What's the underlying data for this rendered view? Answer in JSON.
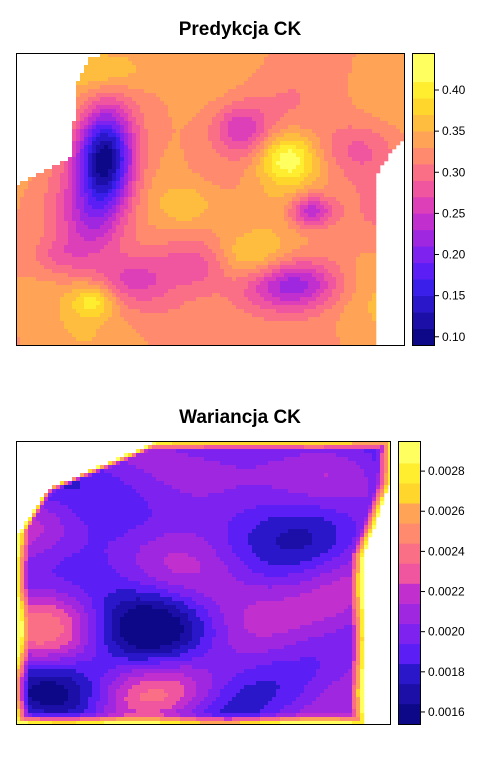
{
  "palette": [
    "#0d0887",
    "#1b0fa8",
    "#2a17c9",
    "#3a1fea",
    "#5b1ff5",
    "#7e22f0",
    "#a027e0",
    "#c12fcf",
    "#dd3fb8",
    "#f0569f",
    "#fb6f86",
    "#ff8a6d",
    "#ffa456",
    "#ffbd40",
    "#ffd62c",
    "#ffee30",
    "#ffff60"
  ],
  "chart_data": [
    {
      "type": "heatmap",
      "title": "Predykcja CK",
      "legend": {
        "position": "right",
        "range": [
          0.09,
          0.445
        ],
        "ticks": [
          0.1,
          0.15,
          0.2,
          0.25,
          0.3,
          0.35,
          0.4
        ],
        "tick_labels": [
          "0.10",
          "0.15",
          "0.20",
          "0.25",
          "0.30",
          "0.35",
          "0.40"
        ],
        "breaks": [
          0.09,
          0.11,
          0.13,
          0.15,
          0.17,
          0.19,
          0.21,
          0.23,
          0.25,
          0.27,
          0.29,
          0.31,
          0.33,
          0.35,
          0.37,
          0.39,
          0.41,
          0.445
        ]
      },
      "surface": {
        "base": 0.33,
        "features": [
          {
            "cx": 0.23,
            "cy": 0.36,
            "rx": 0.05,
            "ry": 0.12,
            "amp": -0.22
          },
          {
            "cx": 0.19,
            "cy": 0.58,
            "rx": 0.06,
            "ry": 0.1,
            "amp": -0.08
          },
          {
            "cx": 0.76,
            "cy": 0.54,
            "rx": 0.04,
            "ry": 0.04,
            "amp": -0.1
          },
          {
            "cx": 0.71,
            "cy": 0.79,
            "rx": 0.09,
            "ry": 0.06,
            "amp": -0.11
          },
          {
            "cx": 0.58,
            "cy": 0.26,
            "rx": 0.05,
            "ry": 0.06,
            "amp": -0.07
          },
          {
            "cx": 0.88,
            "cy": 0.33,
            "rx": 0.07,
            "ry": 0.07,
            "amp": -0.05
          },
          {
            "cx": 0.48,
            "cy": 0.72,
            "rx": 0.07,
            "ry": 0.06,
            "amp": -0.06
          },
          {
            "cx": 0.3,
            "cy": 0.78,
            "rx": 0.07,
            "ry": 0.06,
            "amp": -0.05
          },
          {
            "cx": 0.11,
            "cy": 0.7,
            "rx": 0.05,
            "ry": 0.05,
            "amp": -0.04
          },
          {
            "cx": 0.7,
            "cy": 0.36,
            "rx": 0.05,
            "ry": 0.06,
            "amp": 0.09
          },
          {
            "cx": 0.2,
            "cy": 0.85,
            "rx": 0.04,
            "ry": 0.04,
            "amp": 0.07
          },
          {
            "cx": 0.6,
            "cy": 0.71,
            "rx": 0.08,
            "ry": 0.06,
            "amp": 0.06
          },
          {
            "cx": 0.22,
            "cy": 0.06,
            "rx": 0.08,
            "ry": 0.05,
            "amp": 0.04
          },
          {
            "cx": 0.44,
            "cy": 0.52,
            "rx": 0.05,
            "ry": 0.05,
            "amp": 0.04
          }
        ],
        "noise_amp": 0.03,
        "seed": 7
      },
      "mask": {
        "top": [
          [
            0.0,
            0.45
          ],
          [
            0.14,
            0.36
          ],
          [
            0.16,
            0.09
          ],
          [
            0.19,
            0.02
          ],
          [
            0.23,
            0.0
          ],
          [
            1.0,
            0.0
          ]
        ],
        "right": [
          [
            0.0,
            1.0
          ],
          [
            0.29,
            1.0
          ],
          [
            0.35,
            0.96
          ],
          [
            0.42,
            0.93
          ],
          [
            0.6,
            0.93
          ],
          [
            0.8,
            0.93
          ],
          [
            1.0,
            0.93
          ]
        ],
        "left": [
          [
            0.0,
            0.14
          ],
          [
            0.11,
            0.14
          ],
          [
            0.17,
            0.11
          ],
          [
            0.25,
            0.05
          ],
          [
            0.33,
            0.0
          ],
          [
            1.0,
            0.0
          ]
        ]
      }
    },
    {
      "type": "heatmap",
      "title": "Wariancja CK",
      "legend": {
        "position": "right",
        "range": [
          0.00154,
          0.00295
        ],
        "ticks": [
          0.0016,
          0.0018,
          0.002,
          0.0022,
          0.0024,
          0.0026,
          0.0028
        ],
        "tick_labels": [
          "0.0016",
          "0.0018",
          "0.0020",
          "0.0022",
          "0.0024",
          "0.0026",
          "0.0028"
        ],
        "breaks": [
          0.00154,
          0.00164,
          0.00174,
          0.00184,
          0.00194,
          0.00204,
          0.00214,
          0.00224,
          0.00234,
          0.00244,
          0.00254,
          0.00264,
          0.00274,
          0.00284,
          0.00295
        ]
      },
      "surface": {
        "base": 0.00198,
        "features": [],
        "noise_amp": 0.00052,
        "seed": 19,
        "edge_boost": 0.0009
      },
      "mask": {
        "top": [
          [
            0.0,
            0.34
          ],
          [
            0.1,
            0.14
          ],
          [
            0.14,
            0.05
          ],
          [
            0.18,
            0.0
          ],
          [
            1.0,
            0.0
          ]
        ],
        "right": [
          [
            0.0,
            1.0
          ],
          [
            0.15,
            1.0
          ],
          [
            0.3,
            0.96
          ],
          [
            0.4,
            0.93
          ],
          [
            1.0,
            0.93
          ]
        ],
        "left": [
          [
            0.0,
            0.38
          ],
          [
            0.2,
            0.03
          ],
          [
            0.3,
            0.0
          ],
          [
            1.0,
            0.0
          ]
        ]
      }
    }
  ]
}
